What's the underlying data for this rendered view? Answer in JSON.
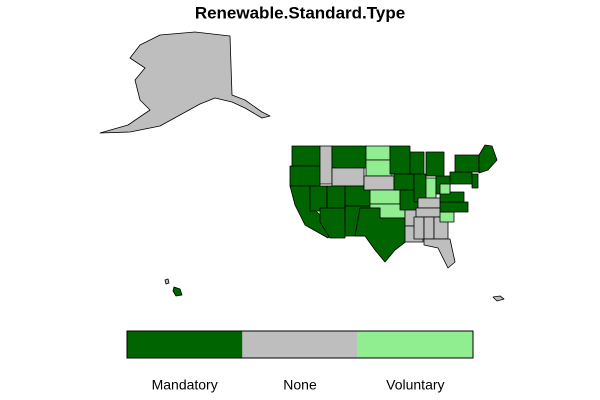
{
  "title": "Renewable.Standard.Type",
  "legend": {
    "items": [
      {
        "label": "Mandatory",
        "color": "#006400"
      },
      {
        "label": "None",
        "color": "#bebebe"
      },
      {
        "label": "Voluntary",
        "color": "#90ee90"
      }
    ]
  }
}
